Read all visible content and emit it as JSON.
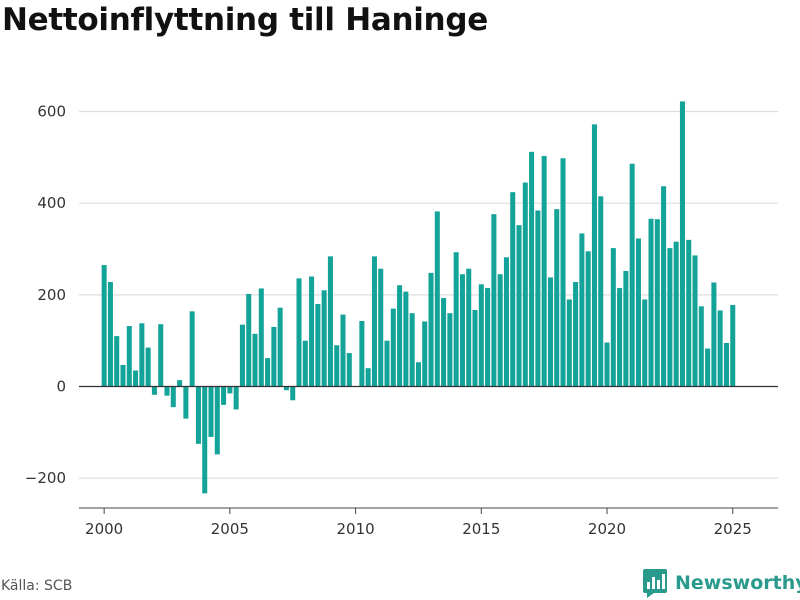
{
  "title": "Nettoinflyttning till Haninge",
  "source": "Källa: SCB",
  "brand": {
    "name": "Newsworthy",
    "icon": "bar-chart-logo-icon",
    "color": "#2a9a8c"
  },
  "colors": {
    "bars": "#13a398",
    "grid": "#dddddd",
    "zero_line": "#333333",
    "axis": "#444444"
  },
  "chart_data": {
    "type": "bar",
    "title": "Nettoinflyttning till Haninge",
    "xlabel": "",
    "ylabel": "",
    "frequency": "quarterly",
    "x_range": [
      1999.0,
      2026.8
    ],
    "xticks": [
      2000,
      2005,
      2010,
      2015,
      2020,
      2025
    ],
    "ylim": [
      -265,
      660
    ],
    "yticks": [
      -200,
      0,
      200,
      400,
      600
    ],
    "ytick_labels": [
      "−200",
      "0",
      "200",
      "400",
      "600"
    ],
    "grid": true,
    "legend": "none",
    "start": "2000 Q1",
    "values": [
      265,
      228,
      110,
      47,
      132,
      35,
      138,
      85,
      -18,
      136,
      -20,
      -45,
      14,
      -70,
      164,
      -125,
      -233,
      -110,
      -148,
      -40,
      -15,
      -50,
      135,
      202,
      115,
      214,
      62,
      130,
      172,
      -8,
      -30,
      236,
      100,
      240,
      180,
      210,
      284,
      90,
      157,
      73,
      0,
      143,
      40,
      284,
      257,
      100,
      170,
      221,
      207,
      160,
      53,
      142,
      248,
      382,
      193,
      160,
      293,
      245,
      257,
      167,
      223,
      215,
      376,
      245,
      282,
      424,
      352,
      445,
      512,
      384,
      503,
      238,
      387,
      498,
      190,
      228,
      334,
      295,
      572,
      415,
      96,
      302,
      215,
      252,
      486,
      323,
      190,
      366,
      365,
      437,
      302,
      316,
      622,
      320,
      286,
      175,
      83,
      227,
      166,
      95,
      178
    ]
  }
}
